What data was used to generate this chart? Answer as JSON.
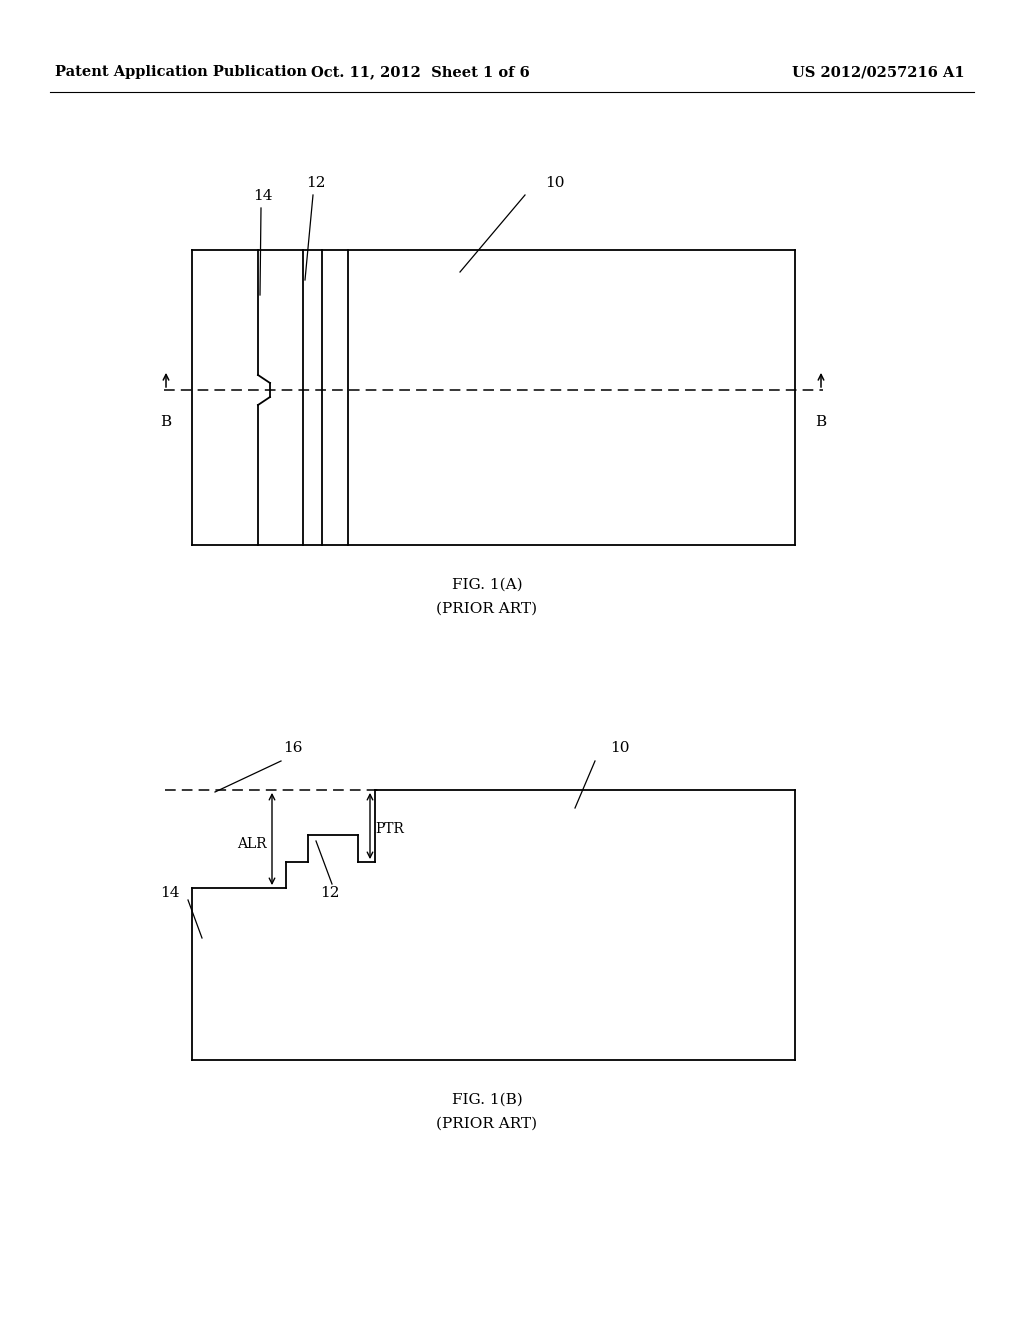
{
  "background_color": "#ffffff",
  "header_left": "Patent Application Publication",
  "header_center": "Oct. 11, 2012  Sheet 1 of 6",
  "header_right": "US 2012/0257216 A1",
  "fig1a_caption": "FIG. 1(A)",
  "fig1a_subcaption": "(PRIOR ART)",
  "fig1b_caption": "FIG. 1(B)",
  "fig1b_subcaption": "(PRIOR ART)",
  "label_14a": "14",
  "label_12a": "12",
  "label_10a": "10",
  "label_B_left": "B",
  "label_B_right": "B",
  "label_16": "16",
  "label_10b": "10",
  "label_14b": "14",
  "label_12b": "12",
  "label_ALR": "ALR",
  "label_PTR": "PTR"
}
